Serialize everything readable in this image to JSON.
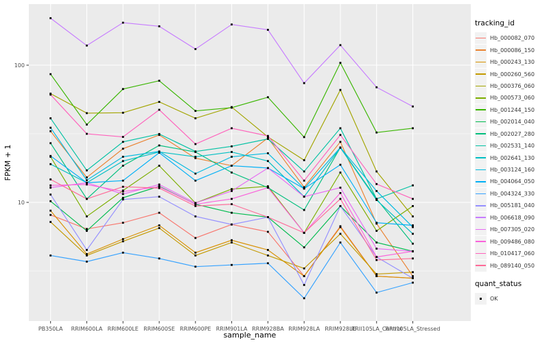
{
  "figure": {
    "background": "#FFFFFF",
    "panel_background": "#EBEBEB",
    "grid_major_color": "#FFFFFF",
    "grid_minor_color": "#F7F7F7",
    "tick_color": "#333333",
    "tick_label_color": "#4D4D4D",
    "title_color": "#000000",
    "point_color": "#000000"
  },
  "chart_data": {
    "type": "line",
    "x_title": "sample_name",
    "y_title": "FPKM + 1",
    "y_scale": "log10",
    "y_ticks": [
      10,
      100
    ],
    "y_tick_labels": [
      "10",
      "100"
    ],
    "y_minor_breaks": [
      3.162,
      31.62
    ],
    "ylim": [
      1.4,
      280
    ],
    "grid": true,
    "legend_position": "right",
    "legend_title": "tracking_id",
    "legend2_title": "quant_status",
    "legend2_items": [
      "OK"
    ],
    "categories": [
      "PB350LA",
      "RRIM600LA",
      "RRIM600LE",
      "RRIM600SE",
      "RRIM600PE",
      "RRIM901LA",
      "RRIM928BA",
      "RRIM928LA",
      "RRIM928LE",
      "RRII105LA_Control",
      "RRII105LA_Stressed"
    ],
    "series": [
      {
        "name": "Hb_000082_070",
        "color": "#F8766D",
        "values": [
          8.1,
          6.4,
          7.1,
          8.4,
          5.5,
          6.9,
          6.1,
          2.9,
          6.7,
          2.9,
          2.8
        ]
      },
      {
        "name": "Hb_000086_150",
        "color": "#EA8331",
        "values": [
          33,
          15.2,
          24.6,
          31,
          21,
          18.5,
          29.5,
          12.9,
          27.6,
          7.0,
          2.9
        ]
      },
      {
        "name": "Hb_000243_130",
        "color": "#D89000",
        "values": [
          8.7,
          4.2,
          5.4,
          6.8,
          4.3,
          5.3,
          4.5,
          2.9,
          6.6,
          2.9,
          2.8
        ]
      },
      {
        "name": "Hb_000260_560",
        "color": "#C49A00",
        "values": [
          7.2,
          4.1,
          5.2,
          6.5,
          4.1,
          5.1,
          4.1,
          3.3,
          5.9,
          3.0,
          3.1
        ]
      },
      {
        "name": "Hb_000376_060",
        "color": "#A3A500",
        "values": [
          62,
          44.7,
          45,
          54,
          41,
          49.5,
          30,
          20.3,
          66,
          16.8,
          7.9
        ]
      },
      {
        "name": "Hb_000573_060",
        "color": "#7CAE00",
        "values": [
          21.5,
          7.9,
          12.2,
          18.5,
          9.9,
          12.5,
          13.1,
          6.0,
          16.5,
          6.2,
          9.4
        ]
      },
      {
        "name": "Hb_001244_150",
        "color": "#39B600",
        "values": [
          86,
          36.9,
          67,
          77,
          46.4,
          49,
          58.4,
          29.9,
          104,
          32.3,
          34.7
        ]
      },
      {
        "name": "Hb_002014_040",
        "color": "#00BB4E",
        "values": [
          10.2,
          6.2,
          10.8,
          13.1,
          9.7,
          8.4,
          7.8,
          4.7,
          9.4,
          5.1,
          4.4
        ]
      },
      {
        "name": "Hb_002027_280",
        "color": "#00BF7D",
        "values": [
          27,
          10.6,
          18.5,
          26,
          23.3,
          16.5,
          12.8,
          8.8,
          25.1,
          10.6,
          5.0
        ]
      },
      {
        "name": "Hb_002531_140",
        "color": "#00C1A3",
        "values": [
          41,
          17.1,
          27.6,
          31.5,
          23.5,
          25.6,
          29,
          16.8,
          34.7,
          10.6,
          13.3
        ]
      },
      {
        "name": "Hb_002641_130",
        "color": "#00BFC4",
        "values": [
          19,
          13.9,
          20,
          23.3,
          21.5,
          23.3,
          20,
          11,
          25,
          10.4,
          5.9
        ]
      },
      {
        "name": "Hb_003124_160",
        "color": "#00BAE0",
        "values": [
          35,
          14.5,
          21.5,
          23.5,
          16.2,
          21.5,
          22.8,
          12.6,
          25.1,
          12.1,
          6.6
        ]
      },
      {
        "name": "Hb_004064_050",
        "color": "#00B0F6",
        "values": [
          21.8,
          13.9,
          14.4,
          23,
          14.4,
          18.5,
          17.8,
          12.6,
          18.8,
          7.1,
          6.8
        ]
      },
      {
        "name": "Hb_004324_330",
        "color": "#35A2FF",
        "values": [
          4.1,
          3.7,
          4.3,
          3.9,
          3.4,
          3.5,
          3.6,
          2.0,
          5.1,
          2.2,
          2.6
        ]
      },
      {
        "name": "Hb_005181_040",
        "color": "#9590FF",
        "values": [
          11.4,
          4.5,
          10.5,
          11,
          7.9,
          6.9,
          7.8,
          2.5,
          9.4,
          4.0,
          2.8
        ]
      },
      {
        "name": "Hb_006618_090",
        "color": "#C77CFF",
        "values": [
          220,
          139,
          204,
          192,
          131,
          198,
          181,
          74,
          140,
          69,
          50
        ]
      },
      {
        "name": "Hb_007305_020",
        "color": "#E76BF3",
        "values": [
          12.8,
          13.9,
          11.5,
          13.5,
          9.9,
          12.1,
          17.8,
          11,
          12.8,
          4.6,
          4.4
        ]
      },
      {
        "name": "Hb_009486_080",
        "color": "#FA62DB",
        "values": [
          13.3,
          13.5,
          12,
          13,
          9.7,
          10.6,
          12.8,
          6.0,
          11.7,
          4.0,
          4.4
        ]
      },
      {
        "name": "Hb_010417_060",
        "color": "#FF62BC",
        "values": [
          61,
          31.6,
          30,
          47.3,
          26.6,
          34.7,
          30.5,
          14.4,
          31,
          13.6,
          10.6
        ]
      },
      {
        "name": "Hb_089140_050",
        "color": "#FF6A98",
        "values": [
          14.7,
          10.6,
          13,
          12.7,
          9.4,
          9.7,
          7.8,
          6.0,
          10.6,
          3.8,
          3.9
        ]
      }
    ]
  }
}
